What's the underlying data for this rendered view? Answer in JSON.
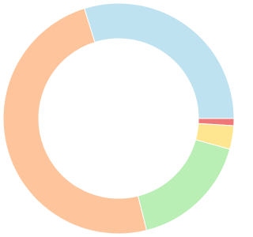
{
  "chart_data": {
    "type": "doughnut",
    "values": [
      29.8,
      1,
      3.3,
      16.8,
      49.1
    ],
    "colors": [
      "#bfe2f0",
      "#f07878",
      "#fde68f",
      "#b9eeb5",
      "#fec59c"
    ]
  }
}
